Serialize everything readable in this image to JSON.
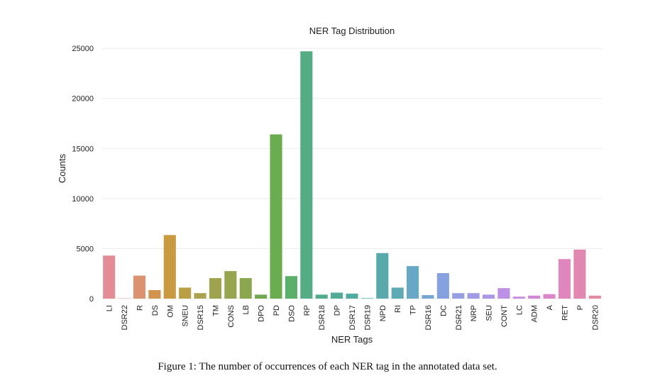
{
  "caption": "Figure 1: The number of occurrences of each NER tag in the annotated data set.",
  "chart_data": {
    "type": "bar",
    "title": "NER Tag Distribution",
    "xlabel": "NER Tags",
    "ylabel": "Counts",
    "ylim": [
      0,
      26000
    ],
    "yticks": [
      0,
      5000,
      10000,
      15000,
      20000,
      25000
    ],
    "grid": true,
    "categories": [
      "LI",
      "DSR22",
      "R",
      "DS",
      "OM",
      "SNEU",
      "DSR15",
      "TM",
      "CONS",
      "LB",
      "DPO",
      "PD",
      "DSO",
      "RP",
      "DSR18",
      "DP",
      "DSR17",
      "DSR19",
      "NPD",
      "RI",
      "TP",
      "DSR16",
      "DC",
      "DSR21",
      "NRP",
      "SEU",
      "CONT",
      "LC",
      "ADM",
      "A",
      "RET",
      "P",
      "DSR20"
    ],
    "values": [
      4300,
      30,
      2300,
      850,
      6350,
      1100,
      550,
      2050,
      2750,
      2050,
      400,
      16400,
      2250,
      24700,
      400,
      600,
      500,
      50,
      4550,
      1100,
      3250,
      350,
      2550,
      550,
      550,
      400,
      1050,
      200,
      300,
      450,
      3950,
      4900,
      300
    ],
    "colors": [
      "#e38c96",
      "#dd907f",
      "#db9270",
      "#d1934d",
      "#c99a40",
      "#b9a045",
      "#aba24c",
      "#9ea44d",
      "#96a54e",
      "#8aa64f",
      "#6fa850",
      "#6aad51",
      "#5aaf6a",
      "#53ac84",
      "#52ab8f",
      "#52aa97",
      "#53aa9e",
      "#55aaa4",
      "#58a9aa",
      "#5caab4",
      "#67a8c6",
      "#74a6d3",
      "#86a2de",
      "#969fe3",
      "#a19be6",
      "#ae96e6",
      "#bc90e4",
      "#c98be2",
      "#d486d8",
      "#db85cb",
      "#df86bd",
      "#e088b0",
      "#e38aa2"
    ],
    "background": "#ffffff",
    "grid_color": "#ebebeb"
  }
}
